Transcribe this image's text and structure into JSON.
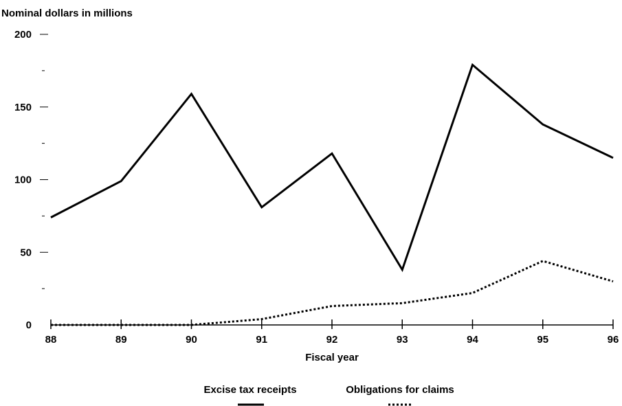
{
  "chart_data": {
    "type": "line",
    "title": "",
    "ylabel": "Nominal dollars in millions",
    "xlabel": "Fiscal year",
    "categories": [
      "88",
      "89",
      "90",
      "91",
      "92",
      "93",
      "94",
      "95",
      "96"
    ],
    "ylim": [
      0,
      200
    ],
    "yticks_labeled": [
      "0",
      "50",
      "100",
      "150",
      "200"
    ],
    "yticks_minor": [
      25,
      75,
      125,
      175
    ],
    "grid": false,
    "legend_position": "bottom",
    "series": [
      {
        "name": "Excise tax receipts",
        "style": "solid",
        "color": "#000000",
        "values": [
          74,
          99,
          159,
          81,
          118,
          38,
          179,
          138,
          115
        ]
      },
      {
        "name": "Obligations for claims",
        "style": "dotted",
        "color": "#000000",
        "values": [
          0,
          0,
          0,
          4,
          13,
          15,
          22,
          44,
          30
        ]
      }
    ]
  }
}
